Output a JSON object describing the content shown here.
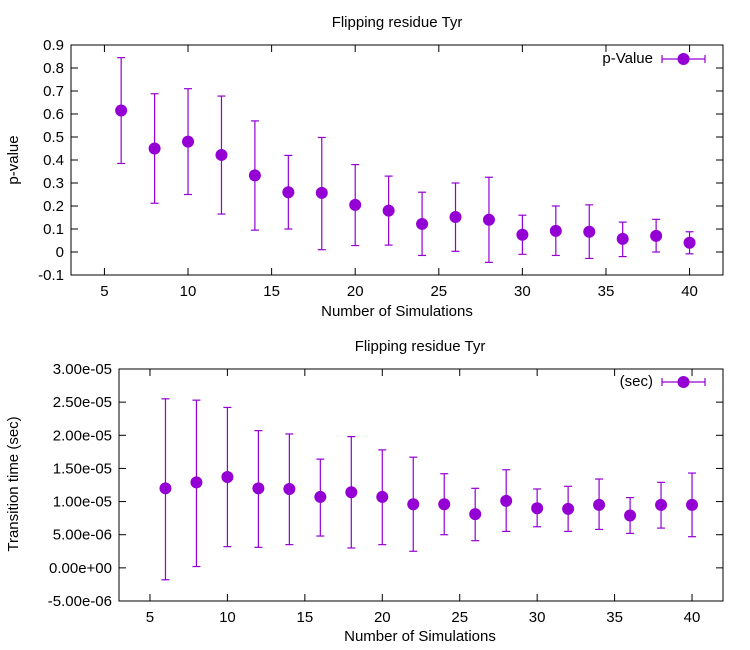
{
  "chart_data": [
    {
      "type": "scatter",
      "title": "Flipping residue  Tyr",
      "xlabel": "Number of Simulations",
      "ylabel": "p-value",
      "xlim": [
        3,
        42
      ],
      "ylim": [
        -0.1,
        0.9
      ],
      "xticks": [
        "5",
        "10",
        "15",
        "20",
        "25",
        "30",
        "35",
        "40"
      ],
      "xtick_values": [
        5,
        10,
        15,
        20,
        25,
        30,
        35,
        40
      ],
      "yticks": [
        "-0.1",
        "0",
        "0.1",
        "0.2",
        "0.3",
        "0.4",
        "0.5",
        "0.6",
        "0.7",
        "0.8",
        "0.9"
      ],
      "ytick_values": [
        -0.1,
        0,
        0.1,
        0.2,
        0.3,
        0.4,
        0.5,
        0.6,
        0.7,
        0.8,
        0.9
      ],
      "legend": "top-right",
      "grid": false,
      "series": [
        {
          "name": "p-Value",
          "color": "#9400d3",
          "points": [
            {
              "x": 6,
              "y": 0.615,
              "lo": 0.385,
              "hi": 0.845
            },
            {
              "x": 8,
              "y": 0.45,
              "lo": 0.212,
              "hi": 0.688
            },
            {
              "x": 10,
              "y": 0.48,
              "lo": 0.25,
              "hi": 0.71
            },
            {
              "x": 12,
              "y": 0.422,
              "lo": 0.165,
              "hi": 0.678
            },
            {
              "x": 14,
              "y": 0.333,
              "lo": 0.095,
              "hi": 0.57
            },
            {
              "x": 16,
              "y": 0.26,
              "lo": 0.1,
              "hi": 0.42
            },
            {
              "x": 18,
              "y": 0.257,
              "lo": 0.01,
              "hi": 0.498
            },
            {
              "x": 20,
              "y": 0.205,
              "lo": 0.028,
              "hi": 0.38
            },
            {
              "x": 22,
              "y": 0.18,
              "lo": 0.03,
              "hi": 0.33
            },
            {
              "x": 24,
              "y": 0.122,
              "lo": -0.015,
              "hi": 0.26
            },
            {
              "x": 26,
              "y": 0.152,
              "lo": 0.003,
              "hi": 0.3
            },
            {
              "x": 28,
              "y": 0.14,
              "lo": -0.045,
              "hi": 0.325
            },
            {
              "x": 30,
              "y": 0.075,
              "lo": -0.01,
              "hi": 0.16
            },
            {
              "x": 32,
              "y": 0.092,
              "lo": -0.015,
              "hi": 0.2
            },
            {
              "x": 34,
              "y": 0.088,
              "lo": -0.028,
              "hi": 0.205
            },
            {
              "x": 36,
              "y": 0.057,
              "lo": -0.02,
              "hi": 0.13
            },
            {
              "x": 38,
              "y": 0.07,
              "lo": 0.0,
              "hi": 0.142
            },
            {
              "x": 40,
              "y": 0.04,
              "lo": -0.008,
              "hi": 0.088
            }
          ]
        }
      ]
    },
    {
      "type": "scatter",
      "title": "Flipping residue  Tyr",
      "xlabel": "Number of Simulations",
      "ylabel": "Transition time  (sec)",
      "xlim": [
        3,
        42
      ],
      "ylim": [
        -5e-06,
        3e-05
      ],
      "xticks": [
        "5",
        "10",
        "15",
        "20",
        "25",
        "30",
        "35",
        "40"
      ],
      "xtick_values": [
        5,
        10,
        15,
        20,
        25,
        30,
        35,
        40
      ],
      "yticks": [
        "-5.00e-06",
        "0.00e+00",
        "5.00e-06",
        "1.00e-05",
        "1.50e-05",
        "2.00e-05",
        "2.50e-05",
        "3.00e-05"
      ],
      "ytick_values": [
        -5e-06,
        0,
        5e-06,
        1e-05,
        1.5e-05,
        2e-05,
        2.5e-05,
        3e-05
      ],
      "legend": "top-right",
      "grid": false,
      "series": [
        {
          "name": "(sec)",
          "color": "#9400d3",
          "points": [
            {
              "x": 6,
              "y": 1.2e-05,
              "lo": -1.8e-06,
              "hi": 2.55e-05
            },
            {
              "x": 8,
              "y": 1.29e-05,
              "lo": 2e-07,
              "hi": 2.53e-05
            },
            {
              "x": 10,
              "y": 1.37e-05,
              "lo": 3.2e-06,
              "hi": 2.42e-05
            },
            {
              "x": 12,
              "y": 1.2e-05,
              "lo": 3.1e-06,
              "hi": 2.07e-05
            },
            {
              "x": 14,
              "y": 1.19e-05,
              "lo": 3.5e-06,
              "hi": 2.02e-05
            },
            {
              "x": 16,
              "y": 1.07e-05,
              "lo": 4.8e-06,
              "hi": 1.64e-05
            },
            {
              "x": 18,
              "y": 1.14e-05,
              "lo": 3e-06,
              "hi": 1.98e-05
            },
            {
              "x": 20,
              "y": 1.07e-05,
              "lo": 3.5e-06,
              "hi": 1.78e-05
            },
            {
              "x": 22,
              "y": 9.6e-06,
              "lo": 2.5e-06,
              "hi": 1.67e-05
            },
            {
              "x": 24,
              "y": 9.6e-06,
              "lo": 5e-06,
              "hi": 1.42e-05
            },
            {
              "x": 26,
              "y": 8.1e-06,
              "lo": 4.1e-06,
              "hi": 1.2e-05
            },
            {
              "x": 28,
              "y": 1.01e-05,
              "lo": 5.5e-06,
              "hi": 1.48e-05
            },
            {
              "x": 30,
              "y": 9e-06,
              "lo": 6.2e-06,
              "hi": 1.19e-05
            },
            {
              "x": 32,
              "y": 8.9e-06,
              "lo": 5.5e-06,
              "hi": 1.23e-05
            },
            {
              "x": 34,
              "y": 9.5e-06,
              "lo": 5.8e-06,
              "hi": 1.34e-05
            },
            {
              "x": 36,
              "y": 7.9e-06,
              "lo": 5.2e-06,
              "hi": 1.06e-05
            },
            {
              "x": 38,
              "y": 9.5e-06,
              "lo": 6e-06,
              "hi": 1.29e-05
            },
            {
              "x": 40,
              "y": 9.5e-06,
              "lo": 4.7e-06,
              "hi": 1.43e-05
            }
          ]
        }
      ]
    }
  ]
}
